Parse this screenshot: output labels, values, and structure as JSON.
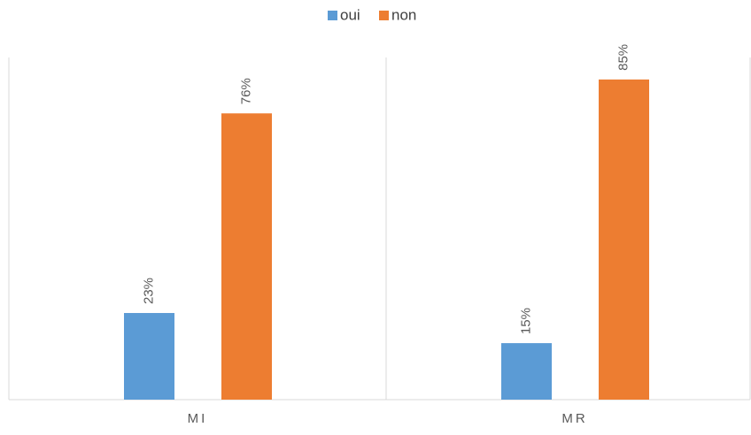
{
  "chart_data": {
    "type": "bar",
    "categories": [
      "MI",
      "MR"
    ],
    "series": [
      {
        "name": "oui",
        "color": "#5b9bd5",
        "values": [
          23,
          15
        ],
        "value_labels": [
          "23%",
          "15%"
        ]
      },
      {
        "name": "non",
        "color": "#ed7d31",
        "values": [
          76,
          85
        ],
        "value_labels": [
          "76%",
          "85%"
        ]
      }
    ]
  }
}
